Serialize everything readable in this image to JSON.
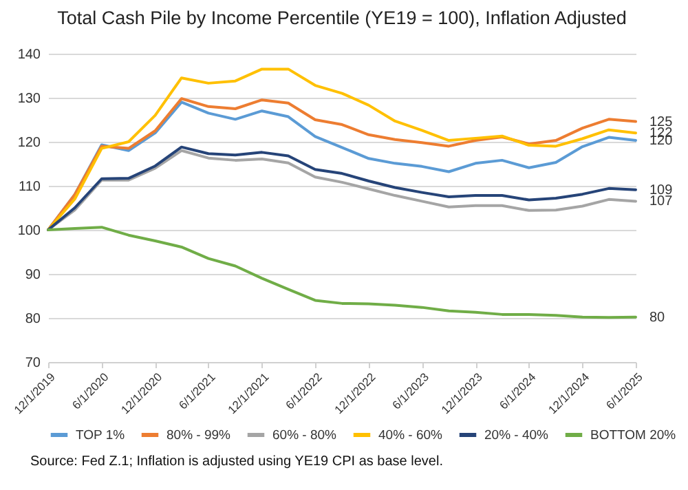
{
  "chart_data": {
    "type": "line",
    "title": "Total Cash Pile by Income Percentile (YE19 = 100), Inflation Adjusted",
    "x": [
      "2019-12-01",
      "2020-03-01",
      "2020-06-01",
      "2020-09-01",
      "2020-12-01",
      "2021-03-01",
      "2021-06-01",
      "2021-09-01",
      "2021-12-01",
      "2022-03-01",
      "2022-06-01",
      "2022-09-01",
      "2022-12-01",
      "2023-03-01",
      "2023-06-01",
      "2023-09-01",
      "2023-12-01",
      "2024-03-01",
      "2024-06-01",
      "2024-09-01",
      "2024-12-01",
      "2025-03-01",
      "2025-06-01"
    ],
    "series": [
      {
        "name": "TOP 1%",
        "color": "#5b9bd5",
        "values": [
          100,
          108,
          119.3,
          118,
          122,
          129,
          126.5,
          125.1,
          127,
          125.7,
          121.2,
          118.7,
          116.2,
          115.1,
          114.4,
          113.2,
          115.1,
          115.8,
          114.1,
          115.3,
          118.9,
          121,
          120.3
        ],
        "value_labels": [
          null,
          null,
          null,
          null,
          null,
          null,
          null,
          null,
          null,
          null,
          null,
          null,
          null,
          null,
          null,
          null,
          null,
          null,
          null,
          null,
          null,
          null,
          "120"
        ]
      },
      {
        "name": "80% - 99%",
        "color": "#ed7d31",
        "values": [
          100,
          108,
          119,
          118.5,
          122.5,
          129.8,
          128,
          127.5,
          129.5,
          128.8,
          125,
          123.9,
          121.6,
          120.5,
          119.8,
          119,
          120.3,
          121.1,
          119.5,
          120.3,
          123.1,
          125.1,
          124.6
        ],
        "value_labels": [
          null,
          null,
          null,
          null,
          null,
          null,
          null,
          null,
          null,
          null,
          null,
          null,
          null,
          null,
          null,
          null,
          null,
          null,
          null,
          null,
          null,
          null,
          "125"
        ]
      },
      {
        "name": "60% - 80%",
        "color": "#a5a5a5",
        "values": [
          100,
          104.5,
          111.3,
          111.3,
          114,
          118,
          116.3,
          115.8,
          116.1,
          115.2,
          112,
          110.8,
          109.3,
          107.8,
          106.5,
          105.2,
          105.5,
          105.5,
          104.4,
          104.5,
          105.4,
          106.9,
          106.5
        ],
        "value_labels": [
          null,
          null,
          null,
          null,
          null,
          null,
          null,
          null,
          null,
          null,
          null,
          null,
          null,
          null,
          null,
          null,
          null,
          null,
          null,
          null,
          null,
          null,
          "107"
        ]
      },
      {
        "name": "40% - 60%",
        "color": "#ffc000",
        "values": [
          100,
          107,
          118.5,
          120,
          126,
          134.5,
          133.3,
          133.8,
          136.5,
          136.5,
          132.8,
          131,
          128.3,
          124.7,
          122.6,
          120.3,
          120.8,
          121.3,
          119.2,
          119,
          120.7,
          122.7,
          122
        ],
        "value_labels": [
          null,
          null,
          null,
          null,
          null,
          null,
          null,
          null,
          null,
          null,
          null,
          null,
          null,
          null,
          null,
          null,
          null,
          null,
          null,
          null,
          null,
          null,
          "122"
        ]
      },
      {
        "name": "20% - 40%",
        "color": "#264478",
        "values": [
          100,
          105,
          111.6,
          111.7,
          114.5,
          118.8,
          117.3,
          117,
          117.6,
          116.8,
          113.7,
          112.8,
          111.1,
          109.6,
          108.5,
          107.5,
          107.8,
          107.8,
          106.8,
          107.2,
          108.1,
          109.4,
          109.1
        ],
        "value_labels": [
          null,
          null,
          null,
          null,
          null,
          null,
          null,
          null,
          null,
          null,
          null,
          null,
          null,
          null,
          null,
          null,
          null,
          null,
          null,
          null,
          null,
          null,
          "109"
        ]
      },
      {
        "name": "BOTTOM 20%",
        "color": "#70ad47",
        "values": [
          100,
          100.3,
          100.6,
          98.8,
          97.5,
          96.1,
          93.5,
          91.8,
          89,
          86.5,
          84,
          83.3,
          83.2,
          82.9,
          82.4,
          81.6,
          81.3,
          80.8,
          80.8,
          80.6,
          80.2,
          80.1,
          80.2
        ],
        "value_labels": [
          null,
          null,
          null,
          null,
          null,
          null,
          null,
          null,
          null,
          null,
          null,
          null,
          null,
          null,
          null,
          null,
          null,
          null,
          null,
          null,
          null,
          null,
          "80"
        ]
      }
    ],
    "xlim": [
      "2019-12-01",
      "2025-06-01"
    ],
    "xticks": [
      {
        "value": "2019-12-01",
        "label": "12/1/2019"
      },
      {
        "value": "2020-06-01",
        "label": "6/1/2020"
      },
      {
        "value": "2020-12-01",
        "label": "12/1/2020"
      },
      {
        "value": "2021-06-01",
        "label": "6/1/2021"
      },
      {
        "value": "2021-12-01",
        "label": "12/1/2021"
      },
      {
        "value": "2022-06-01",
        "label": "6/1/2022"
      },
      {
        "value": "2022-12-01",
        "label": "12/1/2022"
      },
      {
        "value": "2023-06-01",
        "label": "6/1/2023"
      },
      {
        "value": "2023-12-01",
        "label": "12/1/2023"
      },
      {
        "value": "2024-06-01",
        "label": "6/1/2024"
      },
      {
        "value": "2024-12-01",
        "label": "12/1/2024"
      },
      {
        "value": "2025-06-01",
        "label": "6/1/2025"
      }
    ],
    "ylim": [
      70,
      140
    ],
    "yticks": [
      70,
      80,
      90,
      100,
      110,
      120,
      130,
      140
    ],
    "grid": "y",
    "legend": "bottom",
    "annotations": [
      "Source: Fed Z.1; Inflation is adjusted using YE19 CPI as base level."
    ]
  }
}
